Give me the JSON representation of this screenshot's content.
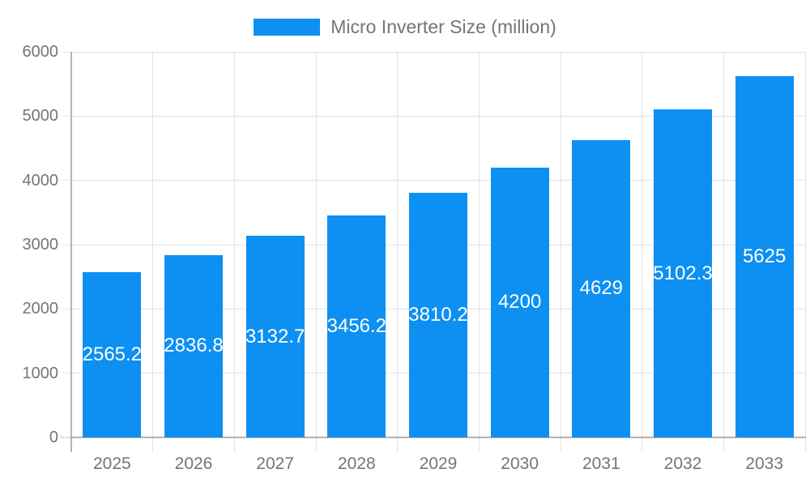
{
  "chart_data": {
    "type": "bar",
    "title": "Micro Inverter Size (million)",
    "legend_position": "top",
    "categories": [
      "2025",
      "2026",
      "2027",
      "2028",
      "2029",
      "2030",
      "2031",
      "2032",
      "2033"
    ],
    "series": [
      {
        "name": "Micro Inverter Size (million)",
        "values": [
          2565.2,
          2836.8,
          3132.7,
          3456.2,
          3810.2,
          4200,
          4629,
          5102.3,
          5625
        ],
        "labels": [
          "2565.2",
          "2836.8",
          "3132.7",
          "3456.2",
          "3810.2",
          "4200",
          "4629",
          "5102.3",
          "5625"
        ]
      }
    ],
    "xlabel": "",
    "ylabel": "",
    "ylim": [
      0,
      6000
    ],
    "yticks": [
      "0",
      "1000",
      "2000",
      "3000",
      "4000",
      "5000",
      "6000"
    ],
    "grid": true,
    "colors": {
      "bar": "#0d90f2",
      "bar_label_text": "#ffffff",
      "axis_text": "#757575",
      "legend_text": "#757575",
      "gridline": "#e2e2e2",
      "axis_line": "#b3b3b3",
      "background": "#ffffff"
    }
  }
}
